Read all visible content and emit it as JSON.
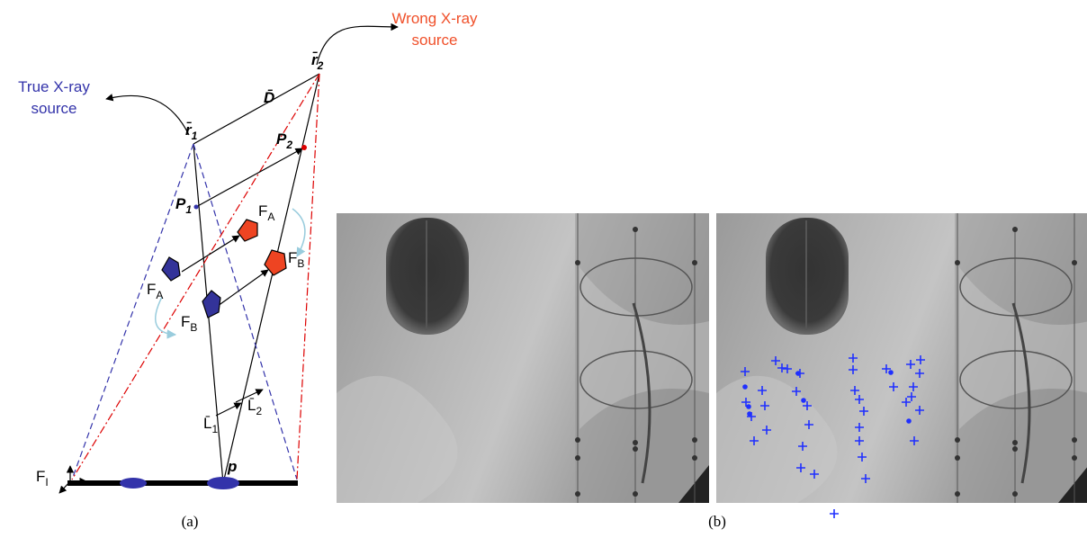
{
  "panel_a": {
    "wrong_source": [
      "Wrong X-ray",
      "source"
    ],
    "true_source": [
      "True X-ray",
      "source"
    ],
    "symbols": [
      {
        "base": "r̄",
        "sub": "2"
      },
      {
        "base": "r̄",
        "sub": "1"
      },
      {
        "base": "D̄"
      },
      {
        "base": "P",
        "sub": "2"
      },
      {
        "base": "P",
        "sub": "1"
      },
      {
        "base": "F",
        "sub": "A"
      },
      {
        "base": "F",
        "sub": "B"
      },
      {
        "base": "F",
        "sub": "A"
      },
      {
        "base": "F",
        "sub": "B"
      },
      {
        "base": "L̄",
        "sub": "1"
      },
      {
        "base": "L̄",
        "sub": "2"
      },
      {
        "base": "p"
      },
      {
        "base": "F",
        "sub": "I"
      }
    ]
  },
  "captions": [
    "(a)",
    "(b)"
  ]
}
